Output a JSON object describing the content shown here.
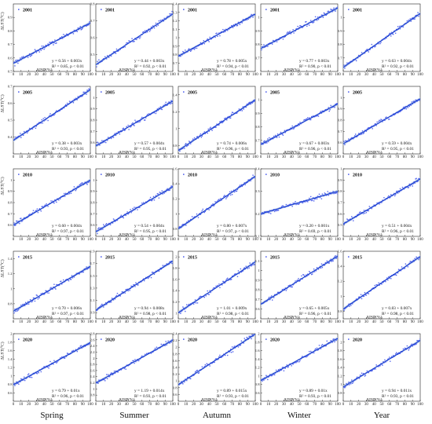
{
  "chart_data": {
    "type": "scatter",
    "layout": {
      "rows": 5,
      "cols": 5
    },
    "seasons": [
      "Spring",
      "Summer",
      "Autumn",
      "Winter",
      "Year"
    ],
    "years": [
      "2001",
      "2005",
      "2010",
      "2015",
      "2020"
    ],
    "xlabel": "AISP(%)",
    "ylabel": "ΔLST(°C)",
    "xlim": [
      0,
      100
    ],
    "xticks": [
      0,
      10,
      20,
      30,
      40,
      50,
      60,
      70,
      80,
      90,
      100
    ],
    "regression_color": "#1a3fd0",
    "point_color": "#5566ee",
    "band_color": "#b9cbe8",
    "panels": [
      {
        "year": "2001",
        "season": "Spring",
        "ylim": [
          0.5,
          1.0
        ],
        "yticks": [
          0.5,
          0.6,
          0.7,
          0.8,
          0.9
        ],
        "a": 0.56,
        "b": 0.003,
        "eq1": "y = 0.56 + 0.003x",
        "eq2": "R² = 0.85, p < 0.01"
      },
      {
        "year": "2001",
        "season": "Summer",
        "ylim": [
          0.4,
          0.8
        ],
        "yticks": [
          0.5,
          0.6,
          0.7,
          0.8
        ],
        "a": 0.44,
        "b": 0.003,
        "eq1": "y = 0.44 + 0.003x",
        "eq2": "R² = 0.92, p < 0.01"
      },
      {
        "year": "2001",
        "season": "Autumn",
        "ylim": [
          0.6,
          1.4
        ],
        "yticks": [
          0.7,
          0.8,
          0.9,
          1.0,
          1.1,
          1.2,
          1.3,
          1.4
        ],
        "a": 0.78,
        "b": 0.005,
        "eq1": "y = 0.78 + 0.005x",
        "eq2": "R² = 0.94, p < 0.01"
      },
      {
        "year": "2001",
        "season": "Winter",
        "ylim": [
          0.6,
          1.1
        ],
        "yticks": [
          0.7,
          0.8,
          0.9,
          1.0
        ],
        "a": 0.77,
        "b": 0.003,
        "eq1": "y = 0.77 + 0.003x",
        "eq2": "R² = 0.90, p < 0.01"
      },
      {
        "year": "2001",
        "season": "Year",
        "ylim": [
          0.6,
          1.1
        ],
        "yticks": [
          0.7,
          0.8,
          0.9,
          1.0
        ],
        "a": 0.63,
        "b": 0.004,
        "eq1": "y = 0.63 + 0.004x",
        "eq2": "R² = 0.92, p < 0.01"
      },
      {
        "year": "2005",
        "season": "Spring",
        "ylim": [
          0.3,
          0.7
        ],
        "yticks": [
          0.4,
          0.5,
          0.6,
          0.7
        ],
        "a": 0.38,
        "b": 0.003,
        "eq1": "y = 0.38 + 0.003x",
        "eq2": "R² = 0.93, p < 0.01"
      },
      {
        "year": "2005",
        "season": "Summer",
        "ylim": [
          0.5,
          1.1
        ],
        "yticks": [
          0.6,
          0.7,
          0.8,
          0.9,
          1.0
        ],
        "a": 0.57,
        "b": 0.004,
        "eq1": "y = 0.57 + 0.004x",
        "eq2": "R² = 0.95, p < 0.01"
      },
      {
        "year": "2005",
        "season": "Autumn",
        "ylim": [
          0.7,
          1.5
        ],
        "yticks": [
          0.8,
          1.0,
          1.2,
          1.4
        ],
        "a": 0.74,
        "b": 0.006,
        "eq1": "y = 0.74 + 0.006x",
        "eq2": "R² = 0.96, p < 0.01"
      },
      {
        "year": "2005",
        "season": "Winter",
        "ylim": [
          0.6,
          1.1
        ],
        "yticks": [
          0.7,
          0.8,
          0.9,
          1.0
        ],
        "a": 0.67,
        "b": 0.003,
        "eq1": "y = 0.67 + 0.003x",
        "eq2": "R² = 0.96, p < 0.01"
      },
      {
        "year": "2005",
        "season": "Year",
        "ylim": [
          0.5,
          1.1
        ],
        "yticks": [
          0.6,
          0.7,
          0.8,
          0.9,
          1.0
        ],
        "a": 0.59,
        "b": 0.004,
        "eq1": "y = 0.59 + 0.004x",
        "eq2": "R² = 0.95, p < 0.01"
      },
      {
        "year": "2010",
        "season": "Spring",
        "ylim": [
          0.5,
          1.1
        ],
        "yticks": [
          0.6,
          0.7,
          0.8,
          0.9,
          1.0
        ],
        "a": 0.6,
        "b": 0.004,
        "eq1": "y = 0.60 + 0.004x",
        "eq2": "R² = 0.97, p < 0.01"
      },
      {
        "year": "2010",
        "season": "Summer",
        "ylim": [
          0.5,
          1.1
        ],
        "yticks": [
          0.6,
          0.7,
          0.8,
          0.9,
          1.0
        ],
        "a": 0.54,
        "b": 0.004,
        "eq1": "y = 0.54 + 0.004x",
        "eq2": "R² = 0.95, p < 0.01"
      },
      {
        "year": "2010",
        "season": "Autumn",
        "ylim": [
          0.7,
          1.6
        ],
        "yticks": [
          0.8,
          1.0,
          1.2,
          1.4,
          1.6
        ],
        "a": 0.8,
        "b": 0.007,
        "eq1": "y = 0.80 + 0.007x",
        "eq2": "R² = 0.97, p < 0.01"
      },
      {
        "year": "2010",
        "season": "Winter",
        "ylim": [
          0.1,
          0.4
        ],
        "yticks": [
          0.1,
          0.2,
          0.3,
          0.4
        ],
        "a": 0.2,
        "b": 0.001,
        "eq1": "y = 0.20 + 0.001x",
        "eq2": "R² = 0.69, p < 0.01"
      },
      {
        "year": "2010",
        "season": "Year",
        "ylim": [
          0.4,
          1.0
        ],
        "yticks": [
          0.5,
          0.6,
          0.7,
          0.8,
          0.9,
          1.0
        ],
        "a": 0.51,
        "b": 0.004,
        "eq1": "y = 0.51 + 0.004x",
        "eq2": "R² = 0.96, p < 0.01"
      },
      {
        "year": "2015",
        "season": "Spring",
        "ylim": [
          0.6,
          1.5
        ],
        "yticks": [
          0.8,
          1.0,
          1.2,
          1.4
        ],
        "a": 0.7,
        "b": 0.006,
        "eq1": "y = 0.70 + 0.006x",
        "eq2": "R² = 0.97, p < 0.01"
      },
      {
        "year": "2015",
        "season": "Summer",
        "ylim": [
          0.8,
          1.9
        ],
        "yticks": [
          0.9,
          1.1,
          1.3,
          1.5,
          1.7,
          1.9
        ],
        "a": 0.94,
        "b": 0.008,
        "eq1": "y = 0.94 + 0.008x",
        "eq2": "R² = 0.98, p < 0.01"
      },
      {
        "year": "2015",
        "season": "Autumn",
        "ylim": [
          0.9,
          2.1
        ],
        "yticks": [
          1.0,
          1.2,
          1.4,
          1.6,
          1.8,
          2.0
        ],
        "a": 1.01,
        "b": 0.009,
        "eq1": "y = 1.01 + 0.009x",
        "eq2": "R² = 0.98, p < 0.01"
      },
      {
        "year": "2015",
        "season": "Winter",
        "ylim": [
          0.5,
          1.2
        ],
        "yticks": [
          0.6,
          0.7,
          0.8,
          0.9,
          1.0,
          1.1
        ],
        "a": 0.65,
        "b": 0.005,
        "eq1": "y = 0.65 + 0.005x",
        "eq2": "R² = 0.96, p < 0.01"
      },
      {
        "year": "2015",
        "season": "Year",
        "ylim": [
          0.7,
          1.6
        ],
        "yticks": [
          0.8,
          1.0,
          1.2,
          1.4,
          1.6
        ],
        "a": 0.83,
        "b": 0.007,
        "eq1": "y = 0.83 + 0.007x",
        "eq2": "R² = 0.98, p < 0.01"
      },
      {
        "year": "2020",
        "season": "Spring",
        "ylim": [
          0.4,
          2.0
        ],
        "yticks": [
          0.6,
          0.8,
          1.0,
          1.2,
          1.4,
          1.6,
          1.8,
          2.0
        ],
        "a": 0.79,
        "b": 0.01,
        "eq1": "y = 0.79 + 0.01x",
        "eq2": "R² = 0.96, p < 0.01"
      },
      {
        "year": "2020",
        "season": "Summer",
        "ylim": [
          0.6,
          2.8
        ],
        "yticks": [
          0.8,
          1.0,
          1.2,
          1.4,
          1.6,
          1.8,
          2.0,
          2.2,
          2.4,
          2.6,
          2.8
        ],
        "a": 1.19,
        "b": 0.014,
        "eq1": "y = 1.19 + 0.014x",
        "eq2": "R² = 0.93, p < 0.01"
      },
      {
        "year": "2020",
        "season": "Autumn",
        "ylim": [
          0.4,
          2.4
        ],
        "yticks": [
          0.6,
          0.8,
          1.0,
          1.2,
          1.4,
          1.6,
          1.8,
          2.0,
          2.2,
          2.4
        ],
        "a": 0.89,
        "b": 0.015,
        "eq1": "y = 0.89 + 0.015x",
        "eq2": "R² = 0.93, p < 0.01"
      },
      {
        "year": "2020",
        "season": "Winter",
        "ylim": [
          0.4,
          2.0
        ],
        "yticks": [
          0.6,
          0.8,
          1.0,
          1.2,
          1.4,
          1.6,
          1.8,
          2.0
        ],
        "a": 0.89,
        "b": 0.01,
        "eq1": "y = 0.89 + 0.01x",
        "eq2": "R² = 0.93, p < 0.01"
      },
      {
        "year": "2020",
        "season": "Year",
        "ylim": [
          0.6,
          2.2
        ],
        "yticks": [
          0.8,
          1.0,
          1.2,
          1.4,
          1.6,
          1.8,
          2.0
        ],
        "a": 0.94,
        "b": 0.011,
        "eq1": "y = 0.94 + 0.011x",
        "eq2": "R² = 0.93, p < 0.01"
      }
    ]
  }
}
